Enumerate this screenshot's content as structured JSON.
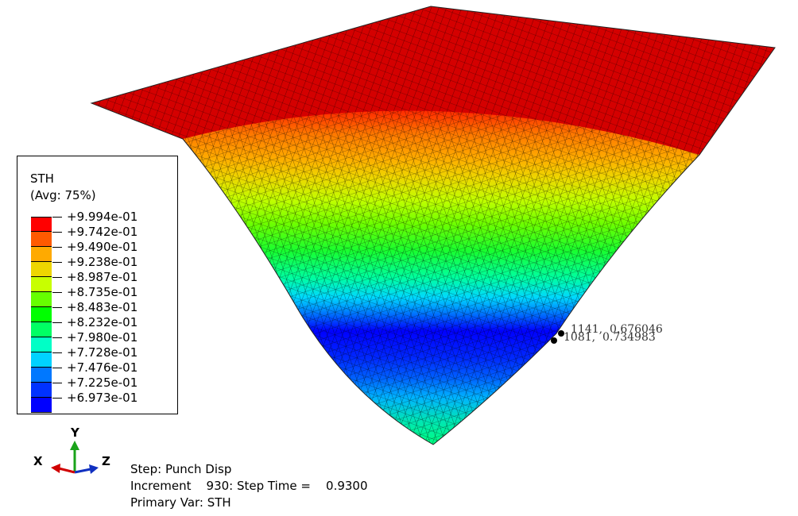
{
  "legend": {
    "title": "STH",
    "subtitle": "(Avg: 75%)",
    "values": [
      "+9.994e-01",
      "+9.742e-01",
      "+9.490e-01",
      "+9.238e-01",
      "+8.987e-01",
      "+8.735e-01",
      "+8.483e-01",
      "+8.232e-01",
      "+7.980e-01",
      "+7.728e-01",
      "+7.476e-01",
      "+7.225e-01",
      "+6.973e-01"
    ],
    "colors": [
      "#ff0000",
      "#ff5a00",
      "#ffaa00",
      "#eed600",
      "#c8ff00",
      "#66ff00",
      "#00ff00",
      "#00ff64",
      "#00ffc6",
      "#00d2ff",
      "#0078ff",
      "#0032ff",
      "#0000ff"
    ]
  },
  "triad": {
    "x": "X",
    "y": "Y",
    "z": "Z"
  },
  "info": {
    "step": "Step: Punch Disp",
    "increment": "Increment    930: Step Time =    0.9300",
    "primary": "Primary Var: STH"
  },
  "probes": [
    {
      "label": "1141,  0.676046"
    },
    {
      "label": "1081,  0.734983"
    }
  ]
}
